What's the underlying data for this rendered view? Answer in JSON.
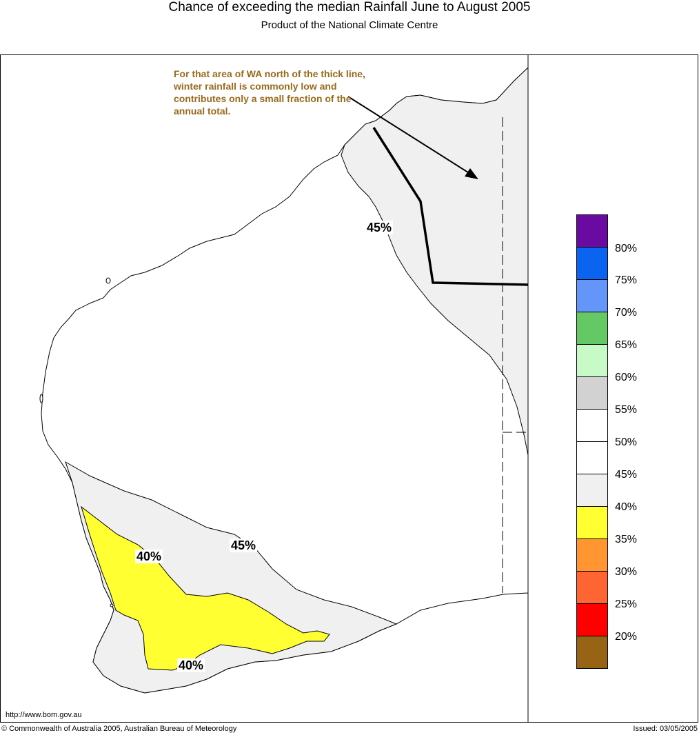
{
  "header": {
    "title": "Chance of exceeding the median Rainfall June to August 2005",
    "subtitle": "Product of the National Climate Centre"
  },
  "annotation": {
    "text": "For that area of WA north of the thick line, winter rainfall is commonly low and contributes only a small fraction of the annual total.",
    "color": "#9a6a1c"
  },
  "contour_labels": [
    "45%",
    "45%",
    "40%",
    "40%"
  ],
  "legend": {
    "labels": [
      "80%",
      "75%",
      "70%",
      "65%",
      "60%",
      "55%",
      "50%",
      "45%",
      "40%",
      "35%",
      "30%",
      "25%",
      "20%"
    ],
    "colors": [
      "#6a0aa0",
      "#0a64f0",
      "#6496fa",
      "#64c864",
      "#c8fac8",
      "#d2d2d2",
      "#ffffff",
      "#ffffff",
      "#f0f0f0",
      "#ffff32",
      "#ff9632",
      "#ff6432",
      "#ff0000",
      "#966414"
    ]
  },
  "footer": {
    "url": "http://www.bom.gov.au",
    "copyright": "© Commonwealth of Australia 2005, Australian Bureau of Meteorology",
    "issued": "Issued: 03/05/2005"
  }
}
